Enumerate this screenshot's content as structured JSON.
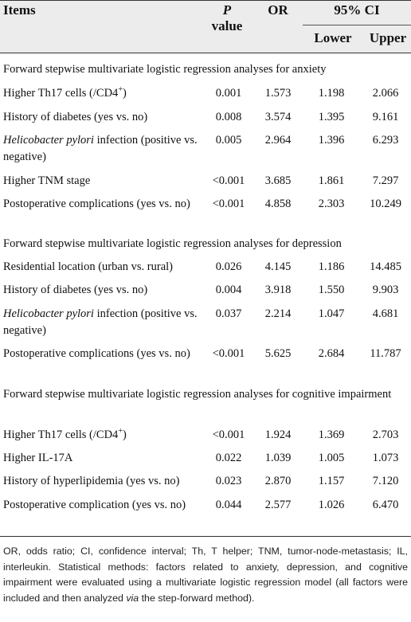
{
  "header": {
    "items": "Items",
    "p_italic": "P",
    "p_rest": "value",
    "or": "OR",
    "ci": "95% CI",
    "lower": "Lower",
    "upper": "Upper"
  },
  "sections": [
    {
      "title": "Forward stepwise multivariate logistic regression analyses for anxiety",
      "rows": [
        {
          "item": "Higher Th17 cells (/CD4",
          "sup": "+",
          "item_after": ")",
          "p": "0.001",
          "or": "1.573",
          "lower": "1.198",
          "upper": "2.066"
        },
        {
          "item": "History of diabetes (yes vs. no)",
          "p": "0.008",
          "or": "3.574",
          "lower": "1.395",
          "upper": "9.161"
        },
        {
          "item_italic": "Helicobacter pylori",
          "item": " infection (positive vs. negative)",
          "p": "0.005",
          "or": "2.964",
          "lower": "1.396",
          "upper": "6.293"
        },
        {
          "item": "Higher TNM stage",
          "p": "<0.001",
          "or": "3.685",
          "lower": "1.861",
          "upper": "7.297"
        },
        {
          "item": "Postoperative complications (yes vs. no)",
          "p": "<0.001",
          "or": "4.858",
          "lower": "2.303",
          "upper": "10.249"
        }
      ]
    },
    {
      "title": "Forward stepwise multivariate logistic regression analyses for depression",
      "rows": [
        {
          "item": "Residential location (urban vs. rural)",
          "p": "0.026",
          "or": "4.145",
          "lower": "1.186",
          "upper": "14.485"
        },
        {
          "item": "History of diabetes (yes vs. no)",
          "p": "0.004",
          "or": "3.918",
          "lower": "1.550",
          "upper": "9.903"
        },
        {
          "item_italic": "Helicobacter pylori",
          "item": " infection (positive vs. negative)",
          "p": "0.037",
          "or": "2.214",
          "lower": "1.047",
          "upper": "4.681"
        },
        {
          "item": "Postoperative complications (yes vs. no)",
          "p": "<0.001",
          "or": "5.625",
          "lower": "2.684",
          "upper": "11.787"
        }
      ]
    },
    {
      "title": "Forward stepwise multivariate logistic regression analyses for cognitive impairment",
      "rows": [
        {
          "item": "Higher Th17 cells (/CD4",
          "sup": "+",
          "item_after": ")",
          "p": "<0.001",
          "or": "1.924",
          "lower": "1.369",
          "upper": "2.703"
        },
        {
          "item": "Higher IL-17A",
          "p": "0.022",
          "or": "1.039",
          "lower": "1.005",
          "upper": "1.073"
        },
        {
          "item": "History of hyperlipidemia (yes vs. no)",
          "p": "0.023",
          "or": "2.870",
          "lower": "1.157",
          "upper": "7.120"
        },
        {
          "item": "Postoperative complication (yes vs. no)",
          "p": "0.044",
          "or": "2.577",
          "lower": "1.026",
          "upper": "6.470"
        }
      ]
    }
  ],
  "footnote": {
    "text_before": "OR, odds ratio; CI, confidence interval; Th, T helper; TNM, tumor-node-metastasis; IL, interleukin. Statistical methods: factors related to anxiety, depression, and cognitive impairment were evaluated using a multivariate logistic regression model (all factors were included and then analyzed ",
    "text_italic": "via",
    "text_after": " the step-forward method)."
  }
}
